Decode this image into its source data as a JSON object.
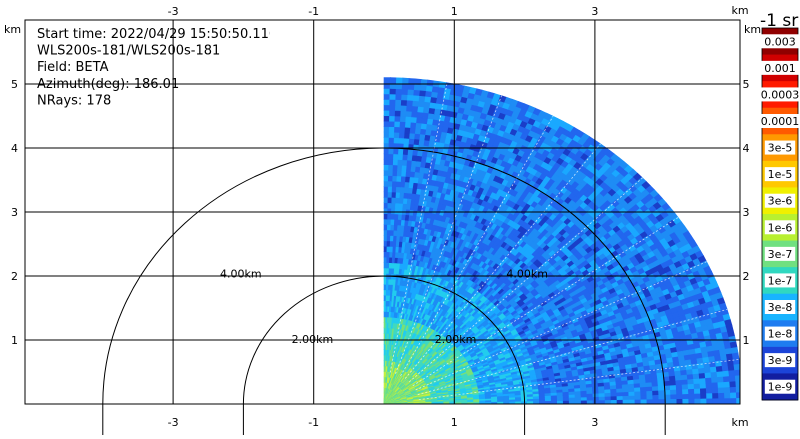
{
  "chart_data": {
    "type": "heatmap",
    "subtype": "radar-ppi",
    "header_lines": [
      "Start time: 2022/04/29 15:50:50.116",
      "WLS200s-181/WLS200s-181",
      "Field: BETA",
      "Azimuth(deg): 186.01",
      "NRays: 178"
    ],
    "x_unit": "km",
    "y_unit": "km",
    "x_ticks": [
      "-3",
      "-1",
      "1",
      "3"
    ],
    "y_ticks": [
      "1",
      "2",
      "3",
      "4",
      "5"
    ],
    "xlim": [
      -4.2,
      4.2
    ],
    "ylim": [
      0,
      5.35
    ],
    "grid": true,
    "range_rings": [
      {
        "radius_km": 2,
        "label": "2.00km"
      },
      {
        "radius_km": 4,
        "label": "4.00km"
      }
    ],
    "sector": {
      "azimuth_from_deg": 0,
      "azimuth_to_deg": 90,
      "max_range_km": 5.1
    },
    "colorbar": {
      "unit": "-1 sr",
      "ticks": [
        "0.003",
        "0.001",
        "0.0003",
        "0.0001",
        "3e-5",
        "1e-5",
        "3e-6",
        "1e-6",
        "3e-7",
        "1e-7",
        "3e-8",
        "1e-8",
        "3e-9",
        "1e-9"
      ],
      "colors": [
        "#900000",
        "#d00000",
        "#ff1a00",
        "#ff5a00",
        "#ff9900",
        "#ffc800",
        "#f0f000",
        "#b8f030",
        "#70e080",
        "#30d8c0",
        "#18b4ff",
        "#1e7cf0",
        "#1c44d8",
        "#121ea0"
      ]
    },
    "dominant_value_range": [
      "1e-8",
      "3e-7"
    ]
  }
}
